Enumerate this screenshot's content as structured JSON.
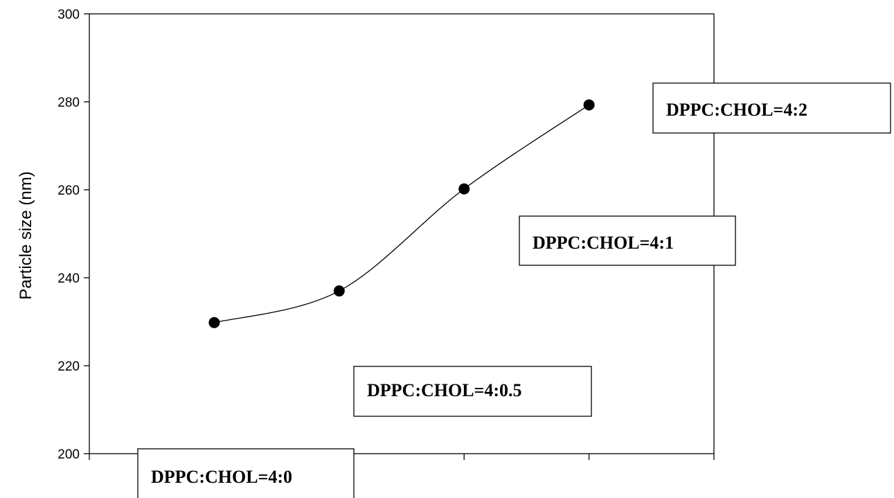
{
  "chart_data": {
    "type": "line",
    "title": "",
    "xlabel": "",
    "ylabel": "Particle size (nm)",
    "x": [
      1,
      2,
      3,
      4
    ],
    "xlim": [
      0,
      5
    ],
    "ylim": [
      200,
      300
    ],
    "yticks": [
      200,
      220,
      240,
      260,
      280,
      300
    ],
    "series": [
      {
        "values": [
          229.8,
          237.0,
          260.2,
          279.3
        ]
      }
    ],
    "annotations": [
      {
        "text": "DPPC:CHOL=4:0"
      },
      {
        "text": "DPPC:CHOL=4:0.5"
      },
      {
        "text": "DPPC:CHOL=4:1"
      },
      {
        "text": "DPPC:CHOL=4:2"
      }
    ],
    "line_color": "#000000",
    "marker_color": "#000000",
    "grid": false,
    "smooth": true
  }
}
